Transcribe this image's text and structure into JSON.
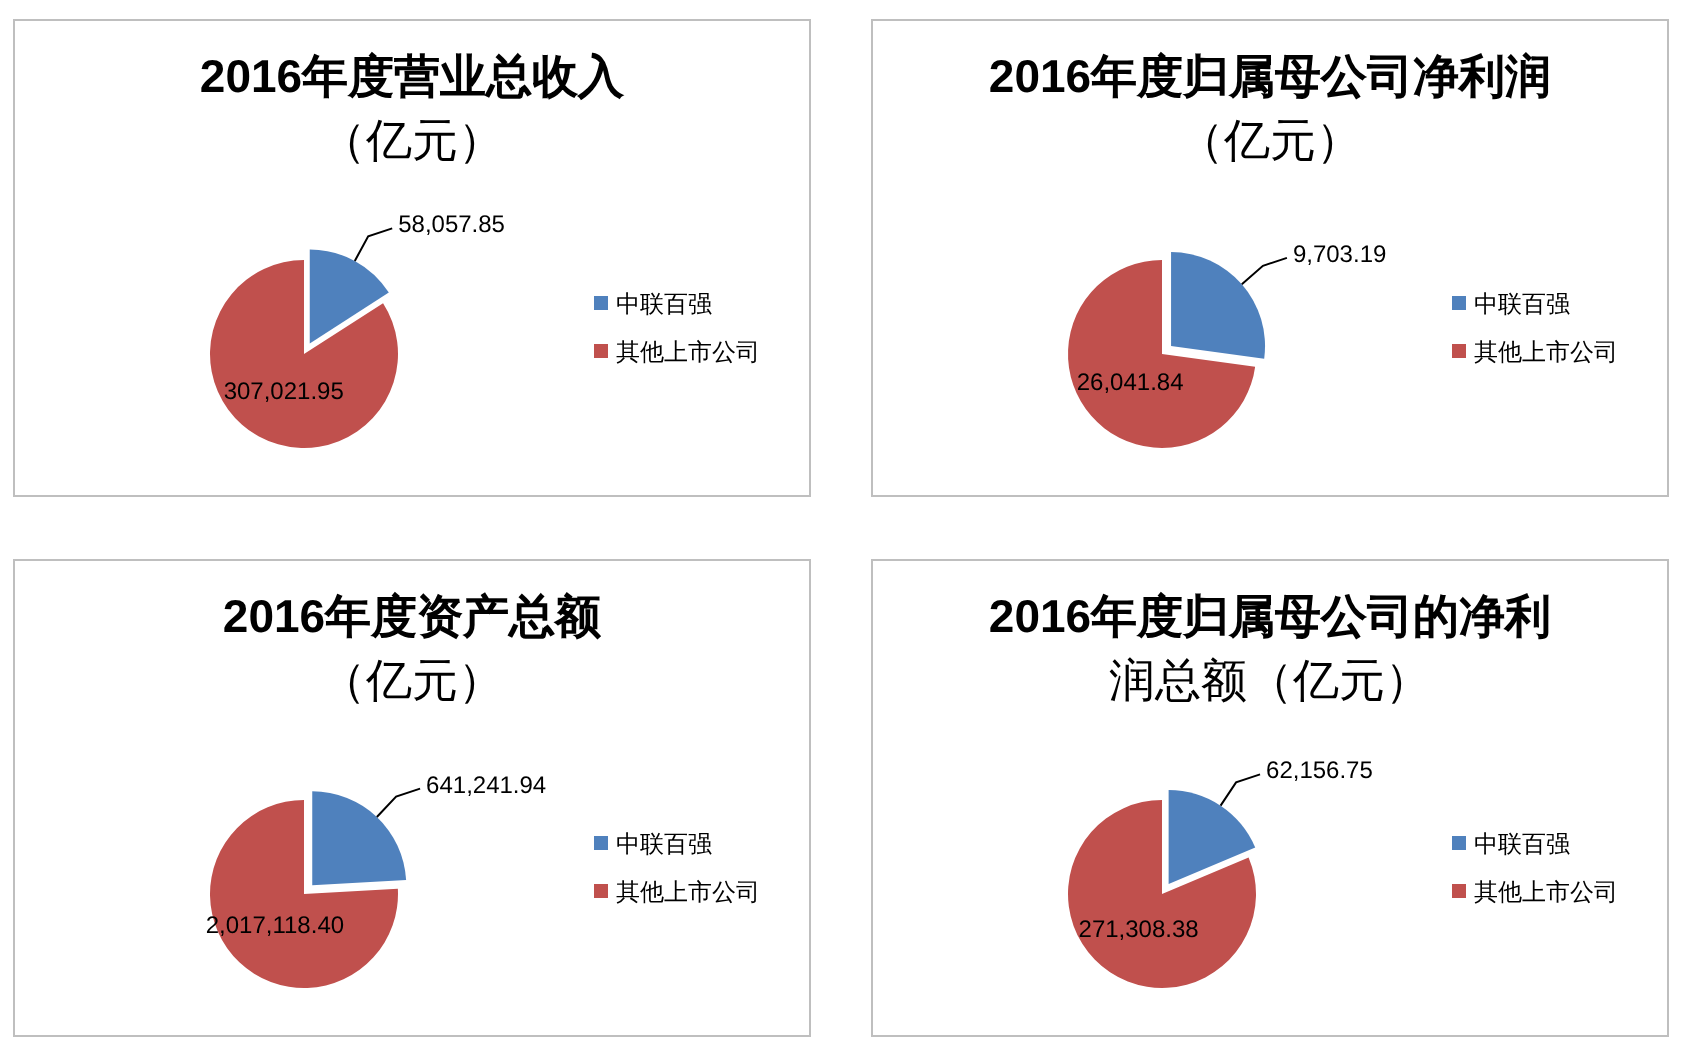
{
  "chart_data": [
    {
      "type": "pie",
      "title": "2016年度营业总收入（亿元）",
      "categories": [
        "中联百强",
        "其他上市公司"
      ],
      "values": [
        58057.85,
        307021.95
      ],
      "colors": [
        "#4f81bd",
        "#c0504d"
      ],
      "value_labels": [
        "58,057.85",
        "307,021.95"
      ],
      "legend": "right"
    },
    {
      "type": "pie",
      "title": "2016年度归属母公司净利润（亿元）",
      "categories": [
        "中联百强",
        "其他上市公司"
      ],
      "values": [
        9703.19,
        26041.84
      ],
      "colors": [
        "#4f81bd",
        "#c0504d"
      ],
      "value_labels": [
        "9,703.19",
        "26,041.84"
      ],
      "legend": "right"
    },
    {
      "type": "pie",
      "title": "2016年度资产总额（亿元）",
      "categories": [
        "中联百强",
        "其他上市公司"
      ],
      "values": [
        641241.94,
        2017118.4
      ],
      "colors": [
        "#4f81bd",
        "#c0504d"
      ],
      "value_labels": [
        "641,241.94",
        "2,017,118.40"
      ],
      "legend": "right"
    },
    {
      "type": "pie",
      "title": "2016年度归属母公司的净利润总额（亿元）",
      "categories": [
        "中联百强",
        "其他上市公司"
      ],
      "values": [
        62156.75,
        271308.38
      ],
      "colors": [
        "#4f81bd",
        "#c0504d"
      ],
      "value_labels": [
        "62,156.75",
        "271,308.38"
      ],
      "legend": "right"
    }
  ]
}
